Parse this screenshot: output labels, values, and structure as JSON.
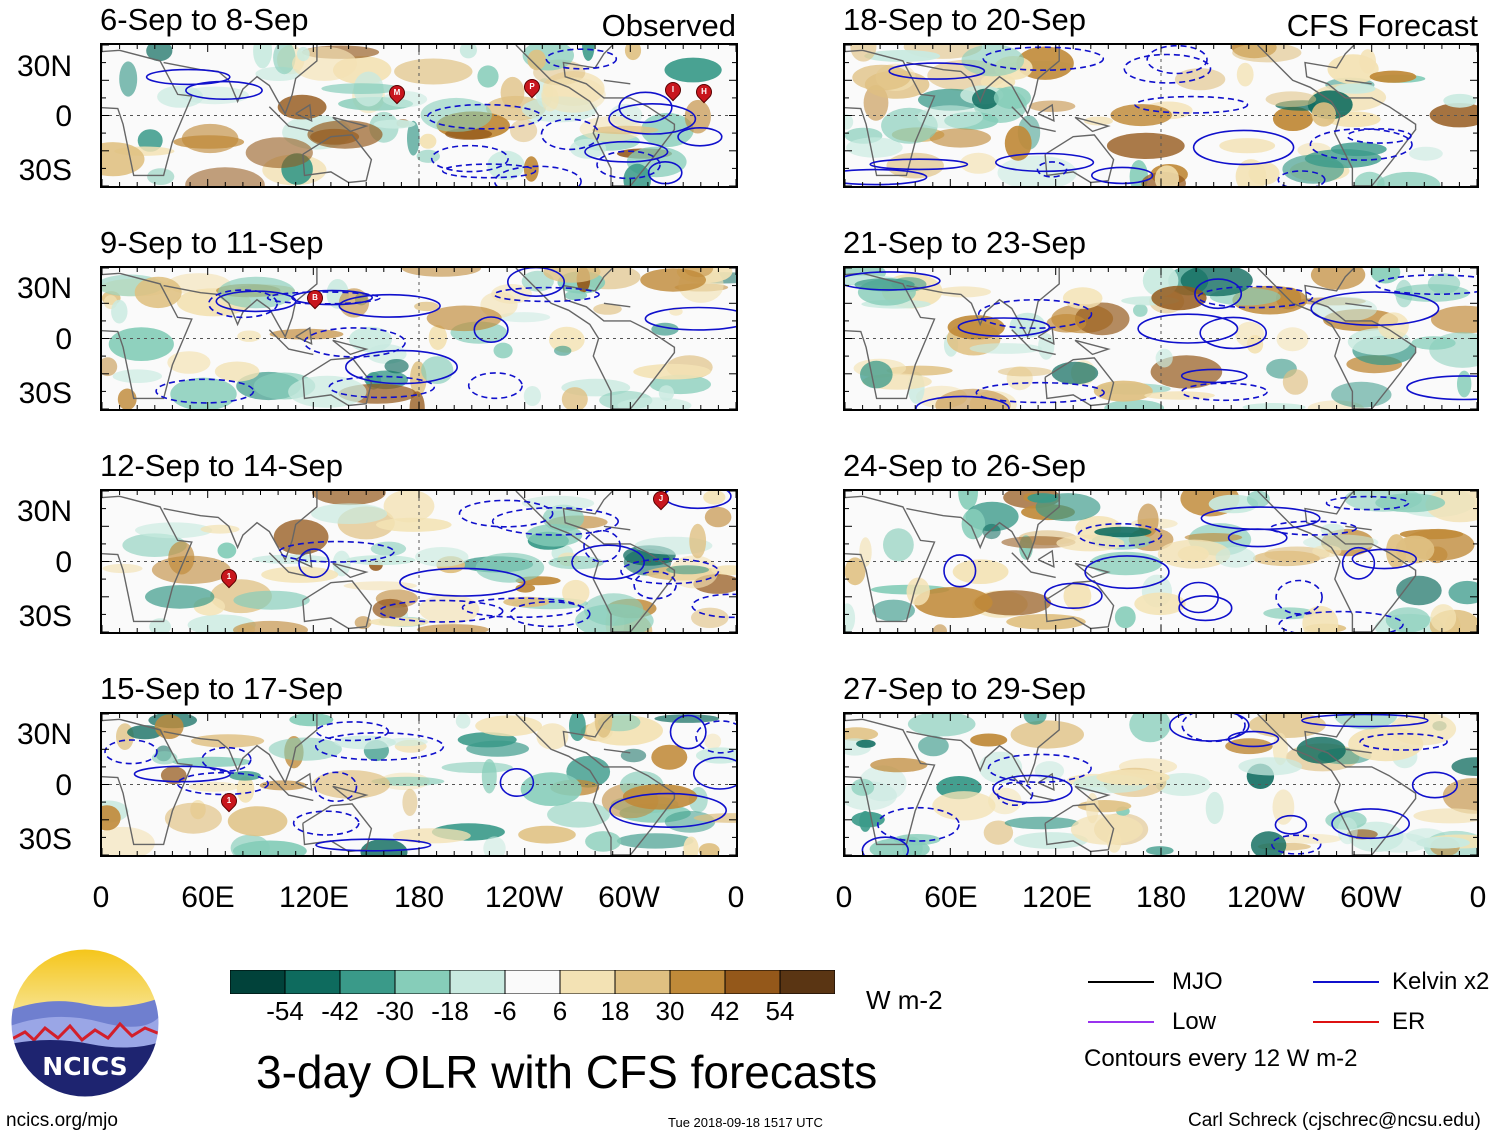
{
  "header": {
    "observed_label": "Observed",
    "forecast_label": "CFS Forecast"
  },
  "observed_panels": [
    {
      "title": "6-Sep to 8-Sep",
      "storms": [
        "M",
        "P",
        "I",
        "H"
      ]
    },
    {
      "title": "9-Sep to 11-Sep",
      "storms": [
        "B"
      ]
    },
    {
      "title": "12-Sep to 14-Sep",
      "storms": [
        "J",
        "1"
      ]
    },
    {
      "title": "15-Sep to 17-Sep",
      "storms": [
        "1"
      ]
    }
  ],
  "forecast_panels": [
    {
      "title": "18-Sep to 20-Sep"
    },
    {
      "title": "21-Sep to 23-Sep"
    },
    {
      "title": "24-Sep to 26-Sep"
    },
    {
      "title": "27-Sep to 29-Sep"
    }
  ],
  "lat_labels": [
    "30N",
    "0",
    "30S"
  ],
  "lon_labels": [
    "0",
    "60E",
    "120E",
    "180",
    "120W",
    "60W",
    "0"
  ],
  "colorbar": {
    "unit": "W m-2",
    "ticks": [
      "-54",
      "-42",
      "-30",
      "-18",
      "-6",
      "6",
      "18",
      "30",
      "42",
      "54"
    ],
    "colors": [
      "#01423a",
      "#0e6b5e",
      "#3a9a89",
      "#86cdb9",
      "#c9eae0",
      "#fafafa",
      "#f3e2b4",
      "#dfc081",
      "#c08a39",
      "#94581a",
      "#5a3513"
    ]
  },
  "legend": {
    "items": [
      {
        "label": "MJO",
        "color": "#000000"
      },
      {
        "label": "Kelvin x2",
        "color": "#1010cc"
      },
      {
        "label": "Low",
        "color": "#9933ee"
      },
      {
        "label": "ER",
        "color": "#dd1111"
      }
    ],
    "note": "Contours every 12 W m-2"
  },
  "title": "3-day OLR with CFS forecasts",
  "logo_text": "NCICS",
  "footer": {
    "url": "ncics.org/mjo",
    "timestamp": "Tue 2018-09-18 1517 UTC",
    "credit": "Carl Schreck (cjschrec@ncsu.edu)"
  }
}
